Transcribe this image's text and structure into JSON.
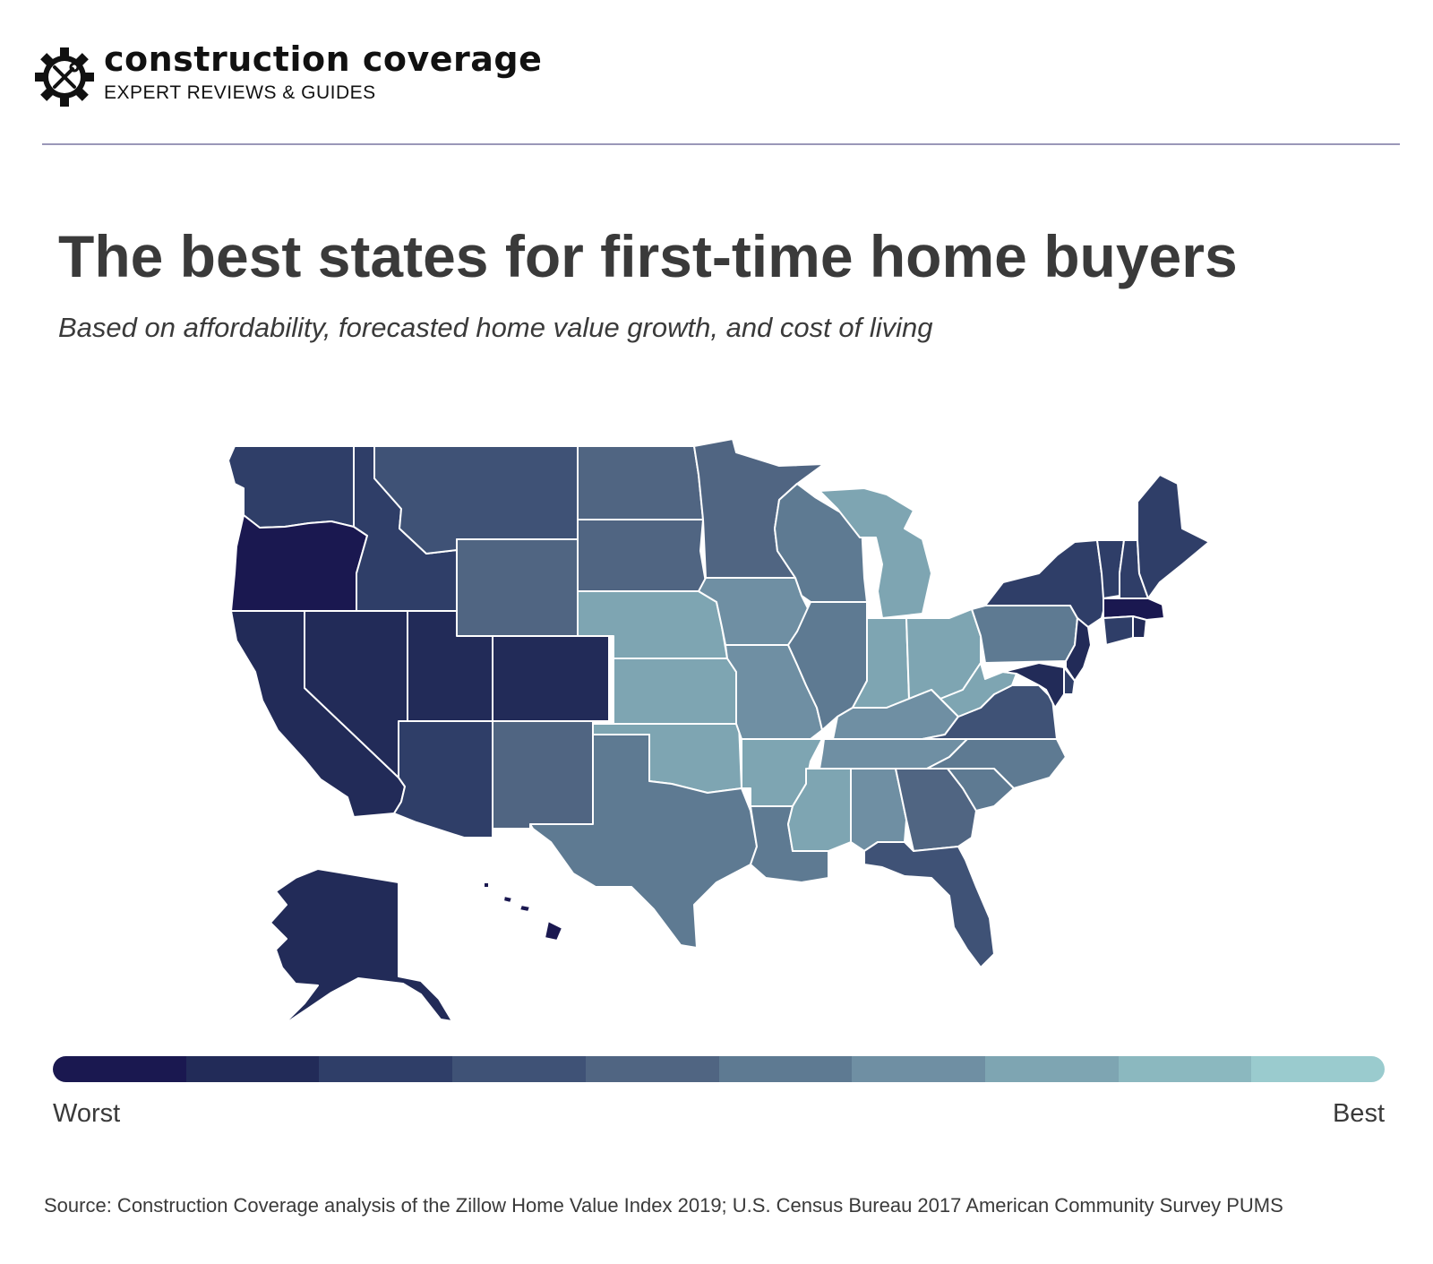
{
  "brand": {
    "name": "construction coverage",
    "tagline": "EXPERT REVIEWS & GUIDES",
    "logo_icon": "gear-wrench-screwdriver-icon"
  },
  "header": {
    "title": "The best states for first-time home buyers",
    "subtitle": "Based on affordability, forecasted home value growth, and cost of living"
  },
  "legend": {
    "low_label": "Worst",
    "high_label": "Best",
    "colors": [
      "#1a1850",
      "#222b58",
      "#2f3e68",
      "#3f5276",
      "#506582",
      "#5e7a92",
      "#6f8fa3",
      "#7ea5b2",
      "#8bb8bf",
      "#9acbce"
    ]
  },
  "map_data": {
    "scale": "1 = worst, 10 = best",
    "states": {
      "WA": 3,
      "OR": 1,
      "CA": 2,
      "NV": 2,
      "ID": 3,
      "MT": 4,
      "WY": 5,
      "UT": 2,
      "CO": 2,
      "AZ": 3,
      "NM": 5,
      "ND": 5,
      "SD": 5,
      "NE": 8,
      "KS": 8,
      "OK": 8,
      "TX": 6,
      "MN": 5,
      "IA": 7,
      "MO": 7,
      "AR": 8,
      "LA": 6,
      "WI": 6,
      "IL": 6,
      "MI": 8,
      "IN": 8,
      "OH": 8,
      "KY": 7,
      "TN": 7,
      "MS": 8,
      "AL": 7,
      "GA": 5,
      "FL": 4,
      "SC": 6,
      "NC": 6,
      "VA": 4,
      "WV": 8,
      "PA": 6,
      "NY": 3,
      "VT": 3,
      "NH": 3,
      "ME": 3,
      "MA": 1,
      "RI": 2,
      "CT": 3,
      "NJ": 2,
      "DE": 3,
      "MD": 2,
      "AK": 2,
      "HI": 1
    }
  },
  "source": "Source: Construction Coverage analysis of the Zillow Home Value Index 2019; U.S. Census Bureau 2017 American Community Survey PUMS"
}
